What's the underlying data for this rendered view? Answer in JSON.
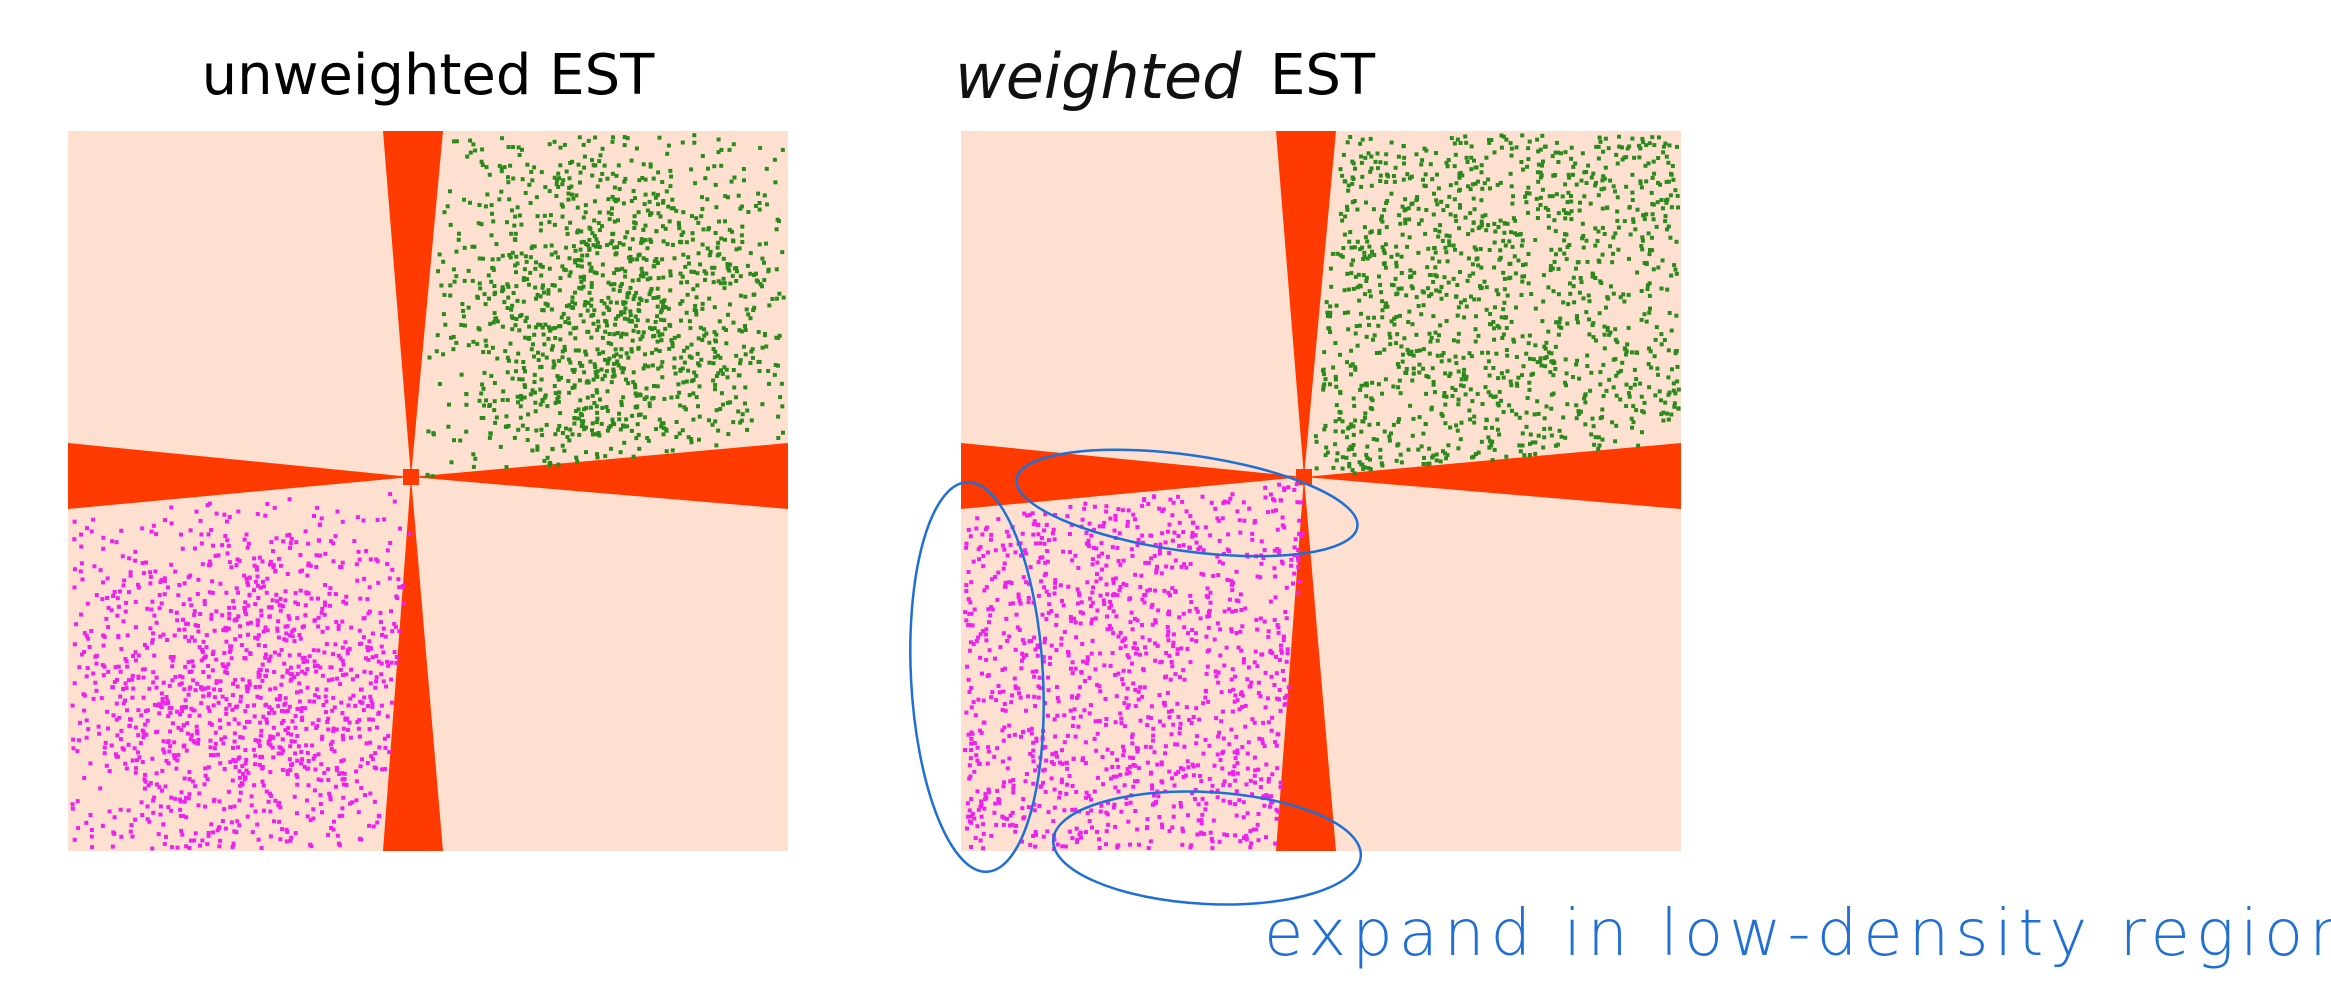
{
  "slide": {
    "left_title": "unweighted EST",
    "right_title": {
      "handwritten": "weighted",
      "printed": "EST"
    },
    "annotation": "expand in low-density regions"
  }
}
